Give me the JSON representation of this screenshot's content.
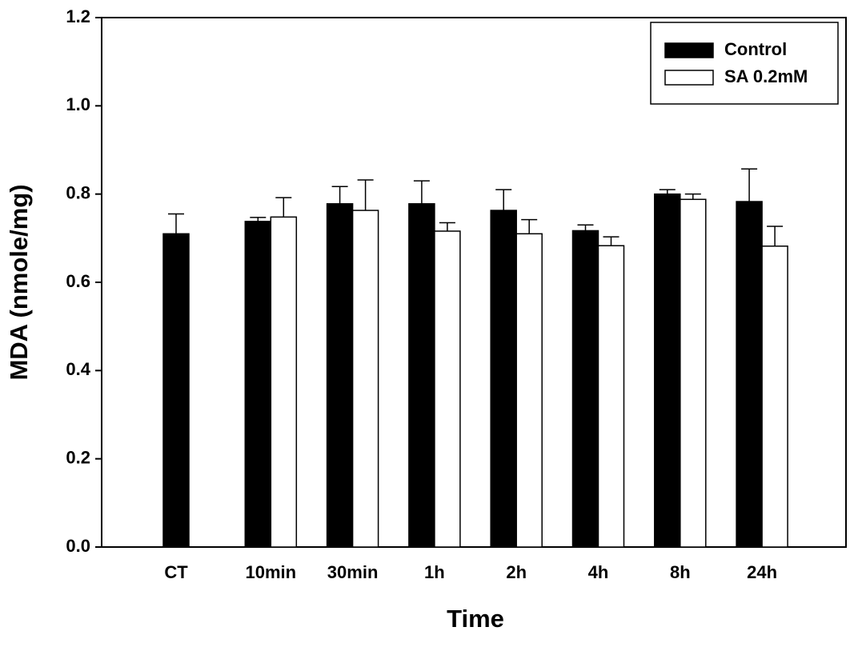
{
  "chart_data": {
    "type": "bar",
    "x_label": "Time",
    "y_label": "MDA (nmole/mg)",
    "categories": [
      "CT",
      "10min",
      "30min",
      "1h",
      "2h",
      "4h",
      "8h",
      "24h"
    ],
    "series": [
      {
        "name": "Control",
        "color": "#000000",
        "values": [
          0.71,
          0.738,
          0.778,
          0.778,
          0.763,
          0.717,
          0.8,
          0.783
        ],
        "errors": [
          0.045,
          0.009,
          0.039,
          0.052,
          0.047,
          0.013,
          0.01,
          0.074
        ]
      },
      {
        "name": "SA 0.2mM",
        "color": "#ffffff",
        "values": [
          null,
          0.748,
          0.763,
          0.716,
          0.71,
          0.683,
          0.788,
          0.682
        ],
        "errors": [
          null,
          0.044,
          0.069,
          0.019,
          0.032,
          0.02,
          0.012,
          0.045
        ]
      }
    ],
    "ylim": [
      0,
      1.2
    ],
    "yticks": [
      {
        "value": 0,
        "label": "0.0"
      },
      0.2,
      0.4,
      0.6,
      0.8,
      {
        "value": 1,
        "label": "1.0"
      },
      1.2
    ],
    "legend": "upper right"
  }
}
